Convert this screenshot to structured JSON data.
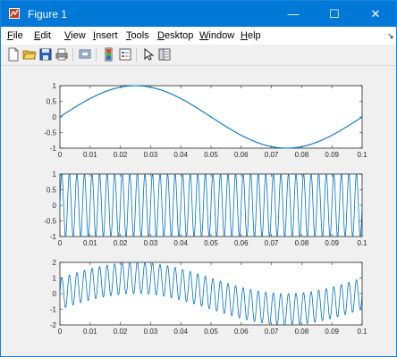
{
  "window": {
    "title": "Figure 1",
    "controls": {
      "minimize": "—",
      "maximize": "☐",
      "close": "✕"
    }
  },
  "menubar": {
    "items": [
      {
        "key": "F",
        "rest": "ile"
      },
      {
        "key": "E",
        "rest": "dit"
      },
      {
        "key": "V",
        "rest": "iew"
      },
      {
        "key": "I",
        "rest": "nsert"
      },
      {
        "key": "T",
        "rest": "ools"
      },
      {
        "key": "D",
        "rest": "esktop"
      },
      {
        "key": "W",
        "rest": "indow"
      },
      {
        "key": "H",
        "rest": "elp"
      }
    ],
    "overflow": "↘"
  },
  "toolbar": {
    "icons": [
      "new-figure-icon",
      "open-file-icon",
      "save-icon",
      "print-icon",
      "link-plot-icon",
      "insert-colorbar-icon",
      "insert-legend-icon",
      "pointer-edit-icon",
      "property-inspector-icon"
    ]
  },
  "colors": {
    "line": "#0072bd",
    "titlebar": "#0078d7",
    "background": "#f0f0f0"
  },
  "chart_data": [
    {
      "type": "line",
      "function": "sin(2*pi*10*t)",
      "xlim": [
        0,
        0.1
      ],
      "ylim": [
        -1,
        1
      ],
      "xticks": [
        0,
        0.01,
        0.02,
        0.03,
        0.04,
        0.05,
        0.06,
        0.07,
        0.08,
        0.09,
        0.1
      ],
      "xtick_labels": [
        "0",
        "0.01",
        "0.02",
        "0.03",
        "0.04",
        "0.05",
        "0.06",
        "0.07",
        "0.08",
        "0.09",
        "0.1"
      ],
      "yticks": [
        -1,
        -0.5,
        0,
        0.5,
        1
      ],
      "ytick_labels": [
        "-1",
        "-0.5",
        "0",
        "0.5",
        "1"
      ],
      "series": [
        {
          "amp1": 1,
          "freq1": 10,
          "amp2": 0,
          "freq2": 0
        }
      ]
    },
    {
      "type": "line",
      "function": "sin(2*pi*400*t)",
      "xlim": [
        0,
        0.1
      ],
      "ylim": [
        -1,
        1
      ],
      "xticks": [
        0,
        0.01,
        0.02,
        0.03,
        0.04,
        0.05,
        0.06,
        0.07,
        0.08,
        0.09,
        0.1
      ],
      "xtick_labels": [
        "0",
        "0.01",
        "0.02",
        "0.03",
        "0.04",
        "0.05",
        "0.06",
        "0.07",
        "0.08",
        "0.09",
        "0.1"
      ],
      "yticks": [
        -1,
        -0.5,
        0,
        0.5,
        1
      ],
      "ytick_labels": [
        "-1",
        "-0.5",
        "0",
        "0.5",
        "1"
      ],
      "series": [
        {
          "amp1": 0,
          "freq1": 0,
          "amp2": 1,
          "freq2": 400
        }
      ]
    },
    {
      "type": "line",
      "function": "sin(2*pi*10*t) + sin(2*pi*400*t)",
      "xlim": [
        0,
        0.1
      ],
      "ylim": [
        -2,
        2
      ],
      "xticks": [
        0,
        0.01,
        0.02,
        0.03,
        0.04,
        0.05,
        0.06,
        0.07,
        0.08,
        0.09,
        0.1
      ],
      "xtick_labels": [
        "0",
        "0.01",
        "0.02",
        "0.03",
        "0.04",
        "0.05",
        "0.06",
        "0.07",
        "0.08",
        "0.09",
        "0.1"
      ],
      "yticks": [
        -2,
        -1,
        0,
        1,
        2
      ],
      "ytick_labels": [
        "-2",
        "-1",
        "0",
        "1",
        "2"
      ],
      "series": [
        {
          "amp1": 1,
          "freq1": 10,
          "amp2": 1,
          "freq2": 400
        }
      ]
    }
  ]
}
